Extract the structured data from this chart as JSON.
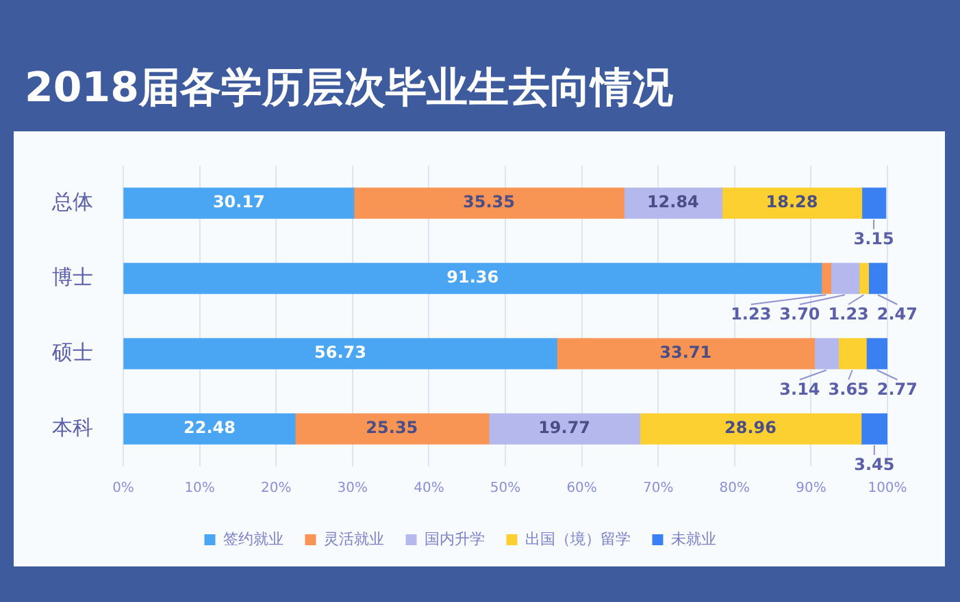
{
  "chart_data": {
    "type": "bar",
    "orientation": "horizontal",
    "stacked": true,
    "title": "2018届各学历层次毕业生去向情况",
    "categories": [
      "总体",
      "博士",
      "硕士",
      "本科"
    ],
    "series": [
      {
        "name": "签约就业",
        "color": "#4aa6f2",
        "values": [
          30.17,
          91.36,
          56.73,
          22.48
        ],
        "value_labels": [
          "30.17",
          "91.36",
          "56.73",
          "22.48"
        ]
      },
      {
        "name": "灵活就业",
        "color": "#f89454",
        "values": [
          35.35,
          1.23,
          33.71,
          25.35
        ],
        "value_labels": [
          "35.35",
          "1.23",
          "33.71",
          "25.35"
        ]
      },
      {
        "name": "国内升学",
        "color": "#b5b8ec",
        "values": [
          12.84,
          3.7,
          3.14,
          19.77
        ],
        "value_labels": [
          "12.84",
          "3.70",
          "3.14",
          "19.77"
        ]
      },
      {
        "name": "出国（境）留学",
        "color": "#fcd030",
        "values": [
          18.28,
          1.23,
          3.65,
          28.96
        ],
        "value_labels": [
          "18.28",
          "1.23",
          "3.65",
          "28.96"
        ]
      },
      {
        "name": "未就业",
        "color": "#3b80f2",
        "values": [
          3.15,
          2.47,
          2.77,
          3.45
        ],
        "value_labels": [
          "3.15",
          "2.47",
          "2.77",
          "3.45"
        ]
      }
    ],
    "xlim": [
      0,
      100
    ],
    "xticks": [
      {
        "value": 0,
        "label": "0%"
      },
      {
        "value": 10,
        "label": "10%"
      },
      {
        "value": 20,
        "label": "20%"
      },
      {
        "value": 30,
        "label": "30%"
      },
      {
        "value": 40,
        "label": "40%"
      },
      {
        "value": 50,
        "label": "50%"
      },
      {
        "value": 60,
        "label": "60%"
      },
      {
        "value": 70,
        "label": "70%"
      },
      {
        "value": 80,
        "label": "80%"
      },
      {
        "value": 90,
        "label": "90%"
      },
      {
        "value": 100,
        "label": "100%"
      }
    ],
    "grid": "x",
    "legend": "bottom"
  }
}
